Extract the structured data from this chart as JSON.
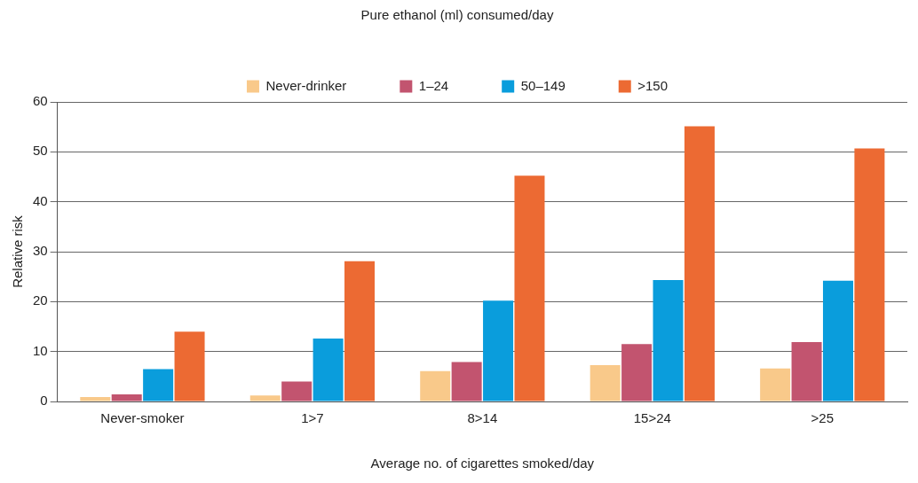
{
  "chart_data": {
    "type": "bar",
    "legend_title": "Pure ethanol (ml) consumed/day",
    "xlabel": "Average no. of cigarettes smoked/day",
    "ylabel": "Relative risk",
    "categories": [
      "Never-smoker",
      "1>7",
      "8>14",
      "15>24",
      ">25"
    ],
    "series": [
      {
        "name": "Never-drinker",
        "color": "#f9c98a",
        "values": [
          0.9,
          1.2,
          6.1,
          7.3,
          6.6
        ]
      },
      {
        "name": "1–24",
        "color": "#c2546f",
        "values": [
          1.4,
          4.0,
          7.9,
          11.5,
          11.9
        ]
      },
      {
        "name": "50–149",
        "color": "#0a9ddc",
        "values": [
          6.5,
          12.6,
          20.2,
          24.3,
          24.2
        ]
      },
      {
        "name": ">150",
        "color": "#ec6a33",
        "values": [
          14.0,
          28.1,
          45.2,
          55.1,
          50.7
        ]
      }
    ],
    "ylim": [
      0,
      60
    ],
    "yticks": [
      0,
      10,
      20,
      30,
      40,
      50,
      60
    ],
    "grid": "y",
    "legend": "top"
  }
}
